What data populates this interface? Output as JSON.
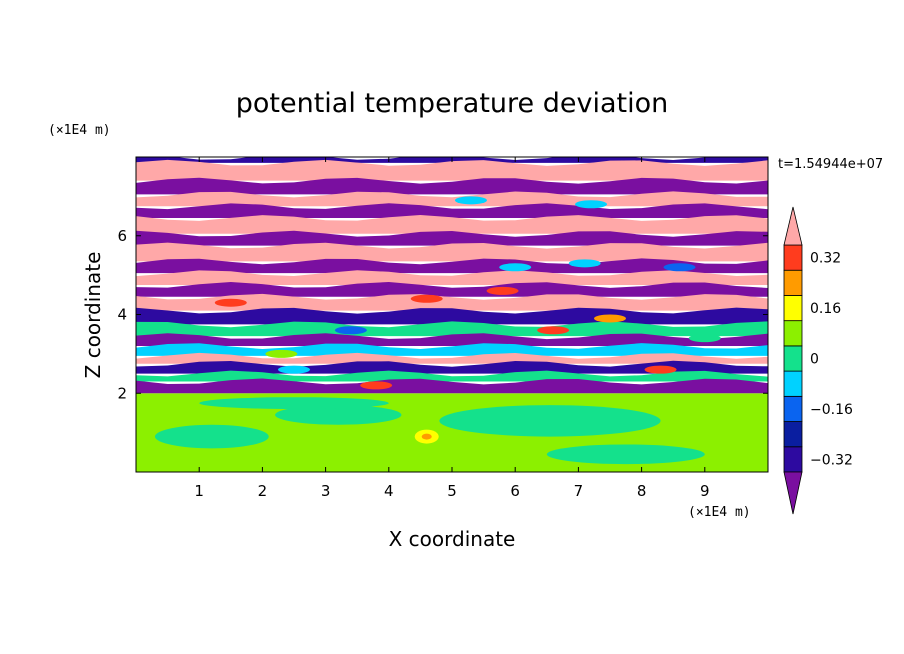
{
  "chart_data": {
    "type": "heatmap",
    "title": "potential temperature deviation",
    "xlabel": "X coordinate",
    "ylabel": "Z coordinate",
    "x_unit": "(×1E4 m)",
    "y_unit": "(×1E4 m)",
    "time_label": "t=1.54944e+07",
    "xlim": [
      0,
      10
    ],
    "ylim": [
      0,
      8
    ],
    "x_ticks": [
      1,
      2,
      3,
      4,
      5,
      6,
      7,
      8,
      9
    ],
    "y_ticks": [
      2,
      4,
      6
    ],
    "colorbar": {
      "levels": [
        -0.4,
        -0.32,
        -0.24,
        -0.16,
        -0.08,
        0,
        0.08,
        0.16,
        0.24,
        0.32,
        0.4
      ],
      "tick_labels": [
        "0.32",
        "0.16",
        "0",
        "−0.16",
        "−0.32"
      ],
      "tick_values": [
        0.32,
        0.16,
        0,
        -0.16,
        -0.32
      ],
      "colors": [
        "#7a0fa0",
        "#2d0aa0",
        "#0a1ea0",
        "#0a64f0",
        "#00d2ff",
        "#14e18c",
        "#8cf000",
        "#ffff00",
        "#ff9b00",
        "#ff3c1e",
        "#ffa8a8"
      ]
    },
    "field": {
      "description_bands": [
        {
          "z": [
            0,
            2
          ],
          "value": 0.04
        },
        {
          "z": [
            2,
            4.5
          ],
          "value": 0.0
        },
        {
          "z": [
            4.5,
            8
          ],
          "value": 0.0
        }
      ]
    }
  }
}
